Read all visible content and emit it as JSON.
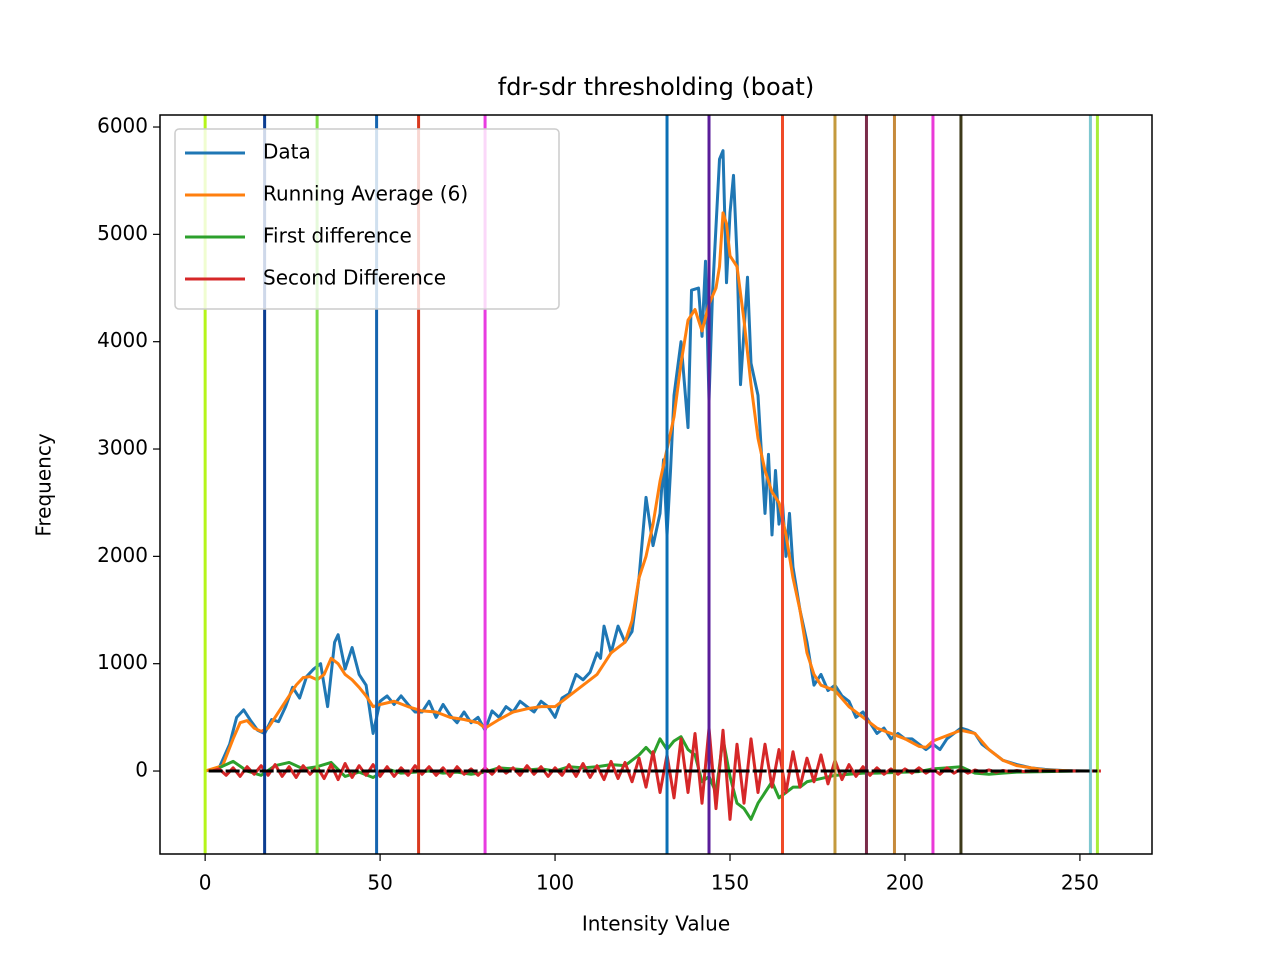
{
  "chart_data": {
    "type": "line",
    "title": "fdr-sdr thresholding (boat)",
    "x_label": "Intensity Value",
    "y_label": "Frequency",
    "xlim": [
      -12.9,
      270.6
    ],
    "ylim": [
      -773,
      6112
    ],
    "xticks": [
      0,
      50,
      100,
      150,
      200,
      250
    ],
    "yticks": [
      0,
      1000,
      2000,
      3000,
      4000,
      5000,
      6000
    ],
    "legend": "upper left",
    "series": [
      {
        "name": "Data",
        "color": "#1f77b4",
        "x": [
          0,
          4,
          7,
          9,
          11,
          13,
          15,
          17,
          19,
          21,
          23,
          25,
          27,
          29,
          31,
          33,
          35,
          37,
          38,
          40,
          42,
          44,
          46,
          48,
          50,
          52,
          54,
          56,
          58,
          60,
          62,
          64,
          66,
          68,
          70,
          72,
          74,
          76,
          78,
          80,
          82,
          84,
          86,
          88,
          90,
          92,
          94,
          96,
          98,
          100,
          102,
          104,
          106,
          108,
          110,
          112,
          113,
          114,
          116,
          118,
          120,
          122,
          124,
          126,
          128,
          130,
          131,
          132,
          133,
          134,
          136,
          138,
          139,
          141,
          142,
          143,
          144,
          145,
          147,
          148,
          149,
          150,
          151,
          152,
          153,
          155,
          156,
          158,
          160,
          161,
          162,
          163,
          164,
          165,
          166,
          167,
          168,
          170,
          172,
          174,
          176,
          178,
          180,
          182,
          184,
          186,
          188,
          190,
          192,
          194,
          196,
          198,
          200,
          202,
          204,
          206,
          208,
          210,
          212,
          214,
          216,
          218,
          220,
          222,
          224,
          226,
          228,
          232,
          236,
          240,
          245,
          250,
          255
        ],
        "values": [
          0,
          30,
          250,
          500,
          570,
          470,
          380,
          350,
          480,
          460,
          600,
          780,
          680,
          880,
          950,
          1000,
          600,
          1200,
          1270,
          950,
          1150,
          900,
          800,
          350,
          650,
          700,
          620,
          700,
          620,
          550,
          550,
          650,
          500,
          620,
          520,
          450,
          550,
          450,
          500,
          380,
          560,
          500,
          600,
          550,
          650,
          600,
          550,
          650,
          600,
          500,
          680,
          720,
          900,
          850,
          920,
          1100,
          1050,
          1350,
          1100,
          1350,
          1200,
          1300,
          1800,
          2550,
          2100,
          2400,
          2900,
          2200,
          2800,
          3500,
          4000,
          3200,
          4480,
          4500,
          4050,
          4750,
          3450,
          4450,
          5700,
          5780,
          4550,
          5200,
          5550,
          4800,
          3600,
          4600,
          3800,
          3500,
          2400,
          2950,
          2200,
          2800,
          2300,
          2500,
          2000,
          2400,
          1900,
          1500,
          1200,
          800,
          900,
          750,
          800,
          700,
          650,
          500,
          550,
          450,
          350,
          400,
          300,
          350,
          300,
          300,
          250,
          200,
          250,
          200,
          300,
          350,
          400,
          380,
          350,
          250,
          200,
          150,
          100,
          60,
          30,
          15,
          5,
          2,
          0
        ]
      },
      {
        "name": "Running Average (6)",
        "color": "#ff7f0e",
        "x": [
          0,
          5,
          8,
          10,
          12,
          14,
          16,
          18,
          20,
          22,
          24,
          26,
          28,
          30,
          32,
          34,
          36,
          38,
          40,
          42,
          44,
          46,
          48,
          50,
          54,
          58,
          62,
          66,
          70,
          74,
          78,
          80,
          84,
          88,
          92,
          96,
          100,
          104,
          108,
          112,
          116,
          120,
          122,
          124,
          126,
          128,
          130,
          132,
          134,
          136,
          138,
          140,
          142,
          144,
          146,
          147,
          148,
          149,
          150,
          152,
          154,
          156,
          158,
          160,
          162,
          164,
          166,
          168,
          170,
          172,
          174,
          176,
          180,
          184,
          188,
          192,
          196,
          200,
          204,
          206,
          208,
          212,
          216,
          220,
          224,
          228,
          232,
          236,
          240,
          248,
          255
        ],
        "values": [
          0,
          50,
          300,
          450,
          470,
          400,
          370,
          400,
          500,
          600,
          700,
          800,
          870,
          880,
          850,
          900,
          1050,
          1000,
          900,
          850,
          780,
          700,
          600,
          620,
          650,
          600,
          560,
          550,
          500,
          480,
          450,
          400,
          480,
          550,
          580,
          600,
          600,
          700,
          800,
          900,
          1100,
          1200,
          1400,
          1800,
          2000,
          2300,
          2700,
          3000,
          3300,
          3800,
          4200,
          4300,
          4100,
          4350,
          4500,
          4700,
          5200,
          5100,
          4800,
          4700,
          4200,
          3600,
          3100,
          2800,
          2600,
          2500,
          2200,
          1800,
          1500,
          1100,
          900,
          800,
          750,
          600,
          500,
          400,
          350,
          300,
          230,
          220,
          280,
          330,
          380,
          350,
          200,
          100,
          50,
          30,
          10,
          2,
          0
        ]
      },
      {
        "name": "First difference",
        "color": "#2ca02c",
        "x": [
          4,
          8,
          12,
          16,
          20,
          24,
          28,
          32,
          36,
          40,
          44,
          48,
          52,
          56,
          60,
          64,
          68,
          72,
          76,
          80,
          84,
          88,
          92,
          96,
          100,
          104,
          108,
          112,
          116,
          120,
          124,
          126,
          128,
          130,
          132,
          134,
          136,
          138,
          140,
          142,
          144,
          146,
          148,
          150,
          152,
          154,
          156,
          158,
          160,
          162,
          164,
          166,
          168,
          170,
          172,
          176,
          180,
          184,
          188,
          192,
          196,
          200,
          204,
          208,
          212,
          216,
          220,
          224,
          228,
          232,
          240,
          250,
          255
        ],
        "values": [
          30,
          90,
          0,
          -40,
          50,
          80,
          20,
          40,
          80,
          -50,
          -10,
          -60,
          20,
          -20,
          -10,
          0,
          -20,
          -10,
          -30,
          -10,
          30,
          20,
          10,
          20,
          0,
          40,
          30,
          40,
          60,
          50,
          150,
          220,
          150,
          300,
          200,
          280,
          320,
          200,
          150,
          -100,
          -50,
          -200,
          300,
          -50,
          -300,
          -350,
          -450,
          -300,
          -200,
          -100,
          -250,
          -200,
          -150,
          -150,
          -100,
          -70,
          -40,
          -30,
          -20,
          -20,
          -15,
          -10,
          -5,
          20,
          30,
          40,
          -20,
          -30,
          -20,
          -10,
          -5,
          0,
          0
        ]
      },
      {
        "name": "Second Difference",
        "color": "#d62728",
        "x": [
          2,
          4,
          6,
          8,
          10,
          12,
          14,
          16,
          18,
          20,
          22,
          24,
          26,
          28,
          30,
          32,
          34,
          36,
          38,
          40,
          42,
          44,
          46,
          48,
          50,
          52,
          54,
          56,
          58,
          60,
          62,
          64,
          66,
          68,
          70,
          72,
          74,
          76,
          78,
          80,
          82,
          84,
          86,
          88,
          90,
          92,
          94,
          96,
          98,
          100,
          102,
          104,
          106,
          108,
          110,
          112,
          114,
          116,
          118,
          120,
          122,
          124,
          126,
          128,
          130,
          132,
          134,
          136,
          138,
          140,
          142,
          144,
          146,
          148,
          150,
          152,
          154,
          156,
          158,
          160,
          162,
          164,
          166,
          168,
          170,
          172,
          174,
          176,
          178,
          180,
          182,
          184,
          186,
          188,
          190,
          192,
          194,
          196,
          198,
          200,
          202,
          204,
          206,
          208,
          210,
          212,
          214,
          216,
          218,
          220,
          222,
          224,
          226,
          228,
          230,
          232,
          234,
          236,
          238,
          240,
          242,
          244,
          246,
          248,
          250,
          252,
          254,
          256
        ],
        "values": [
          0,
          20,
          -40,
          30,
          -50,
          40,
          -30,
          50,
          -40,
          60,
          -50,
          40,
          -60,
          50,
          -30,
          40,
          -70,
          60,
          -80,
          70,
          -60,
          50,
          -40,
          60,
          -50,
          40,
          -50,
          30,
          -40,
          50,
          -30,
          40,
          -40,
          30,
          -50,
          40,
          -30,
          20,
          -40,
          30,
          -30,
          40,
          -20,
          30,
          -40,
          50,
          -30,
          40,
          -50,
          30,
          -40,
          60,
          -50,
          70,
          -60,
          50,
          -80,
          90,
          -70,
          80,
          -100,
          120,
          -150,
          180,
          -200,
          150,
          -250,
          300,
          -200,
          350,
          -300,
          400,
          -350,
          380,
          -450,
          250,
          -300,
          300,
          -200,
          250,
          -150,
          200,
          -200,
          180,
          -150,
          120,
          -100,
          150,
          -120,
          100,
          -80,
          60,
          -50,
          40,
          -40,
          30,
          -30,
          20,
          -30,
          20,
          -20,
          30,
          -20,
          20,
          -30,
          30,
          -20,
          20,
          -20,
          10,
          -10,
          10,
          -10,
          5,
          -5,
          5,
          -5,
          0,
          0,
          0,
          0,
          0,
          0,
          0,
          0,
          0,
          0,
          0
        ]
      }
    ],
    "zero_line": {
      "x": [
        1,
        255
      ],
      "y": [
        0,
        0
      ],
      "color": "#000000"
    },
    "vlines": [
      {
        "x": 0,
        "color": "#b5f51a"
      },
      {
        "x": 17,
        "color": "#0b3d91"
      },
      {
        "x": 32,
        "color": "#7fe04a"
      },
      {
        "x": 49,
        "color": "#1565b0"
      },
      {
        "x": 61,
        "color": "#d93a1f"
      },
      {
        "x": 80,
        "color": "#e83ce0"
      },
      {
        "x": 132,
        "color": "#0a6fb5"
      },
      {
        "x": 144,
        "color": "#5a1d9a"
      },
      {
        "x": 165,
        "color": "#f04a28"
      },
      {
        "x": 180,
        "color": "#c49a3e"
      },
      {
        "x": 189,
        "color": "#7a2c4a"
      },
      {
        "x": 197,
        "color": "#c68a3c"
      },
      {
        "x": 208,
        "color": "#ea3ad8"
      },
      {
        "x": 216,
        "color": "#3d3a1a"
      },
      {
        "x": 253,
        "color": "#7ec8d0"
      },
      {
        "x": 255,
        "color": "#a8ee3a"
      }
    ]
  }
}
